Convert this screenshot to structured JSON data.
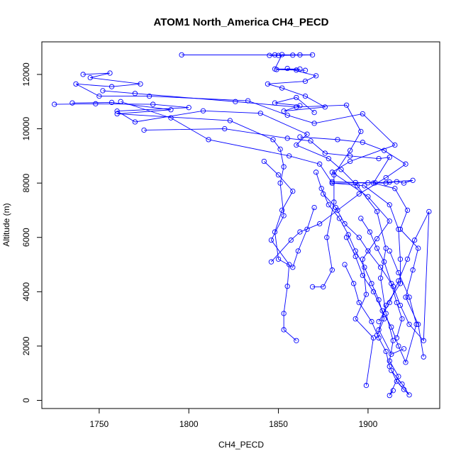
{
  "chart_data": {
    "type": "line",
    "title": "ATOM1 North_America CH4_PECD",
    "xlabel": "CH4_PECD",
    "ylabel": "Altitude (m)",
    "xlim": [
      1718,
      1940
    ],
    "ylim": [
      -300,
      13200
    ],
    "x_ticks": [
      1750,
      1800,
      1850,
      1900
    ],
    "y_ticks": [
      0,
      2000,
      4000,
      6000,
      8000,
      10000,
      12000
    ],
    "line_color": "#0000ff",
    "marker": "open-circle",
    "grid": false,
    "legend": "none",
    "series": [
      {
        "points": [
          [
            1796,
            12720
          ],
          [
            1869,
            12720
          ],
          [
            1850,
            12700
          ],
          [
            1862,
            12720
          ],
          [
            1848,
            12720
          ],
          [
            1845,
            12700
          ],
          [
            1858,
            12710
          ],
          [
            1852,
            12730
          ],
          [
            1848,
            12200
          ],
          [
            1862,
            12200
          ],
          [
            1849,
            12180
          ],
          [
            1865,
            12150
          ],
          [
            1860,
            12160
          ],
          [
            1855,
            12220
          ],
          [
            1871,
            11950
          ],
          [
            1865,
            11750
          ],
          [
            1844,
            11650
          ],
          [
            1852,
            11500
          ],
          [
            1865,
            11200
          ],
          [
            1876,
            10800
          ],
          [
            1853,
            10650
          ],
          [
            1862,
            10850
          ],
          [
            1848,
            10950
          ],
          [
            1860,
            11150
          ],
          [
            1870,
            10600
          ]
        ]
      },
      {
        "points": [
          [
            1741,
            12000
          ],
          [
            1756,
            12050
          ],
          [
            1745,
            11880
          ],
          [
            1773,
            11650
          ],
          [
            1757,
            11550
          ],
          [
            1737,
            11650
          ],
          [
            1750,
            11200
          ],
          [
            1778,
            11200
          ],
          [
            1833,
            11030
          ],
          [
            1855,
            10500
          ],
          [
            1870,
            10200
          ],
          [
            1897,
            10550
          ],
          [
            1915,
            9400
          ],
          [
            1890,
            8800
          ],
          [
            1880,
            8400
          ],
          [
            1900,
            7500
          ],
          [
            1912,
            6600
          ],
          [
            1905,
            5950
          ],
          [
            1897,
            5200
          ],
          [
            1899,
            3900
          ],
          [
            1893,
            3000
          ],
          [
            1903,
            2300
          ],
          [
            1899,
            550
          ]
        ]
      },
      {
        "points": [
          [
            1725,
            10900
          ],
          [
            1748,
            10920
          ],
          [
            1780,
            10900
          ],
          [
            1800,
            10780
          ],
          [
            1760,
            10650
          ],
          [
            1770,
            10250
          ],
          [
            1808,
            10660
          ],
          [
            1840,
            10570
          ],
          [
            1866,
            9800
          ],
          [
            1860,
            9400
          ],
          [
            1878,
            8900
          ],
          [
            1885,
            8500
          ],
          [
            1894,
            7900
          ],
          [
            1905,
            6950
          ],
          [
            1910,
            5600
          ],
          [
            1907,
            4500
          ],
          [
            1910,
            3200
          ],
          [
            1914,
            2200
          ],
          [
            1912,
            1450
          ],
          [
            1917,
            880
          ],
          [
            1912,
            180
          ],
          [
            1914,
            360
          ]
        ]
      },
      {
        "points": [
          [
            1735,
            10950
          ],
          [
            1757,
            10970
          ],
          [
            1790,
            10700
          ],
          [
            1760,
            10550
          ],
          [
            1823,
            10300
          ],
          [
            1847,
            9600
          ],
          [
            1851,
            9250
          ],
          [
            1853,
            8600
          ],
          [
            1851,
            8000
          ],
          [
            1853,
            6800
          ],
          [
            1846,
            5900
          ],
          [
            1856,
            5000
          ],
          [
            1855,
            4200
          ],
          [
            1853,
            3200
          ],
          [
            1853,
            2600
          ],
          [
            1860,
            2200
          ]
        ]
      },
      {
        "points": [
          [
            1752,
            11400
          ],
          [
            1770,
            11300
          ],
          [
            1826,
            11000
          ],
          [
            1860,
            10800
          ],
          [
            1888,
            10870
          ],
          [
            1896,
            9900
          ],
          [
            1890,
            9200
          ],
          [
            1881,
            8300
          ],
          [
            1881,
            7300
          ],
          [
            1877,
            6000
          ],
          [
            1880,
            4800
          ],
          [
            1875,
            4180
          ],
          [
            1869,
            4180
          ]
        ]
      },
      {
        "points": [
          [
            1762,
            11000
          ],
          [
            1790,
            10400
          ],
          [
            1811,
            9600
          ],
          [
            1856,
            9000
          ],
          [
            1873,
            8700
          ],
          [
            1880,
            8000
          ],
          [
            1898,
            7900
          ],
          [
            1912,
            7200
          ],
          [
            1917,
            6300
          ],
          [
            1918,
            5200
          ],
          [
            1918,
            4300
          ],
          [
            1910,
            3500
          ],
          [
            1906,
            2600
          ],
          [
            1913,
            1700
          ],
          [
            1920,
            1900
          ]
        ]
      },
      {
        "points": [
          [
            1775,
            9950
          ],
          [
            1820,
            10000
          ],
          [
            1855,
            9650
          ],
          [
            1868,
            9550
          ],
          [
            1876,
            9100
          ],
          [
            1890,
            9000
          ],
          [
            1906,
            8900
          ],
          [
            1912,
            8950
          ],
          [
            1903,
            8000
          ],
          [
            1915,
            7800
          ],
          [
            1922,
            7000
          ],
          [
            1918,
            6300
          ],
          [
            1928,
            5600
          ],
          [
            1925,
            4800
          ],
          [
            1921,
            3800
          ],
          [
            1928,
            2800
          ],
          [
            1931,
            1600
          ]
        ]
      },
      {
        "points": [
          [
            1880,
            8000
          ],
          [
            1900,
            8010
          ],
          [
            1910,
            8000
          ],
          [
            1916,
            8050
          ],
          [
            1920,
            8000
          ],
          [
            1925,
            8100
          ],
          [
            1912,
            8040
          ],
          [
            1904,
            8010
          ],
          [
            1893,
            8020
          ],
          [
            1880,
            8050
          ]
        ]
      },
      {
        "points": [
          [
            1842,
            8800
          ],
          [
            1850,
            8300
          ],
          [
            1858,
            7700
          ],
          [
            1852,
            7000
          ],
          [
            1848,
            6200
          ],
          [
            1850,
            5200
          ],
          [
            1858,
            4900
          ],
          [
            1861,
            5500
          ],
          [
            1866,
            6300
          ],
          [
            1870,
            7100
          ]
        ]
      },
      {
        "points": [
          [
            1862,
            9700
          ],
          [
            1883,
            9600
          ],
          [
            1897,
            9500
          ],
          [
            1909,
            9200
          ],
          [
            1921,
            8700
          ],
          [
            1910,
            8200
          ],
          [
            1895,
            7600
          ],
          [
            1883,
            7000
          ],
          [
            1873,
            6500
          ],
          [
            1862,
            6200
          ],
          [
            1857,
            5900
          ],
          [
            1846,
            5100
          ]
        ]
      },
      {
        "points": [
          [
            1875,
            7600
          ],
          [
            1882,
            7100
          ],
          [
            1887,
            6500
          ],
          [
            1895,
            6000
          ],
          [
            1900,
            5500
          ],
          [
            1907,
            4900
          ],
          [
            1914,
            4200
          ],
          [
            1918,
            3500
          ],
          [
            1923,
            2800
          ],
          [
            1931,
            2200
          ],
          [
            1934,
            6950
          ],
          [
            1926,
            5900
          ],
          [
            1922,
            5200
          ],
          [
            1917,
            4400
          ],
          [
            1912,
            3600
          ],
          [
            1906,
            2900
          ]
        ]
      },
      {
        "points": [
          [
            1887,
            5000
          ],
          [
            1892,
            4300
          ],
          [
            1895,
            3600
          ],
          [
            1902,
            2900
          ],
          [
            1906,
            2300
          ],
          [
            1910,
            1800
          ],
          [
            1912,
            1250
          ],
          [
            1916,
            700
          ],
          [
            1920,
            400
          ],
          [
            1923,
            200
          ],
          [
            1919,
            600
          ],
          [
            1913,
            1100
          ]
        ]
      },
      {
        "points": [
          [
            1888,
            6000
          ],
          [
            1893,
            5300
          ],
          [
            1897,
            4600
          ],
          [
            1903,
            4000
          ],
          [
            1908,
            3300
          ],
          [
            1913,
            2700
          ],
          [
            1917,
            2000
          ],
          [
            1921,
            1400
          ],
          [
            1927,
            2800
          ],
          [
            1923,
            3800
          ],
          [
            1917,
            4700
          ],
          [
            1912,
            5500
          ]
        ]
      },
      {
        "points": [
          [
            1896,
            6700
          ],
          [
            1901,
            6200
          ],
          [
            1905,
            5600
          ],
          [
            1909,
            5100
          ],
          [
            1913,
            4300
          ],
          [
            1916,
            3600
          ],
          [
            1919,
            3000
          ],
          [
            1916,
            2300
          ]
        ]
      },
      {
        "points": [
          [
            1871,
            8400
          ],
          [
            1874,
            7800
          ],
          [
            1878,
            7200
          ],
          [
            1884,
            6700
          ],
          [
            1889,
            6100
          ],
          [
            1893,
            5500
          ],
          [
            1898,
            4900
          ],
          [
            1902,
            4300
          ],
          [
            1906,
            3700
          ],
          [
            1909,
            3000
          ],
          [
            1905,
            2400
          ]
        ]
      }
    ]
  }
}
